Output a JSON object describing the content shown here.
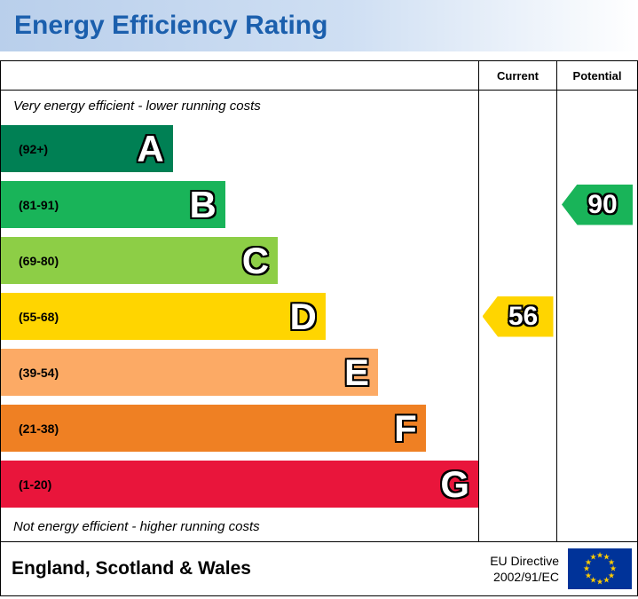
{
  "header": {
    "title": "Energy Efficiency Rating"
  },
  "table": {
    "current_label": "Current",
    "potential_label": "Potential"
  },
  "notes": {
    "top": "Very energy efficient - lower running costs",
    "bottom": "Not energy efficient - higher running costs"
  },
  "footer": {
    "region": "England, Scotland & Wales",
    "directive_line1": "EU Directive",
    "directive_line2": "2002/91/EC",
    "flag_color": "#003399",
    "star_color": "#ffcc00"
  },
  "chart_data": {
    "type": "bar",
    "title": "Energy Efficiency Rating",
    "xlabel": "",
    "ylabel": "",
    "legend": [
      "Current",
      "Potential"
    ],
    "bands": [
      {
        "letter": "A",
        "range": "(92+)",
        "min": 92,
        "max": 100,
        "color": "#008054",
        "width_pct": 36
      },
      {
        "letter": "B",
        "range": "(81-91)",
        "min": 81,
        "max": 91,
        "color": "#19b459",
        "width_pct": 47
      },
      {
        "letter": "C",
        "range": "(69-80)",
        "min": 69,
        "max": 80,
        "color": "#8dce46",
        "width_pct": 58
      },
      {
        "letter": "D",
        "range": "(55-68)",
        "min": 55,
        "max": 68,
        "color": "#ffd500",
        "width_pct": 68
      },
      {
        "letter": "E",
        "range": "(39-54)",
        "min": 39,
        "max": 54,
        "color": "#fcaa65",
        "width_pct": 79
      },
      {
        "letter": "F",
        "range": "(21-38)",
        "min": 21,
        "max": 38,
        "color": "#ef8023",
        "width_pct": 89
      },
      {
        "letter": "G",
        "range": "(1-20)",
        "min": 1,
        "max": 20,
        "color": "#e9153b",
        "width_pct": 100
      }
    ],
    "current": {
      "value": 56,
      "band": "D",
      "color": "#ffd500"
    },
    "potential": {
      "value": 90,
      "band": "B",
      "color": "#19b459"
    }
  }
}
